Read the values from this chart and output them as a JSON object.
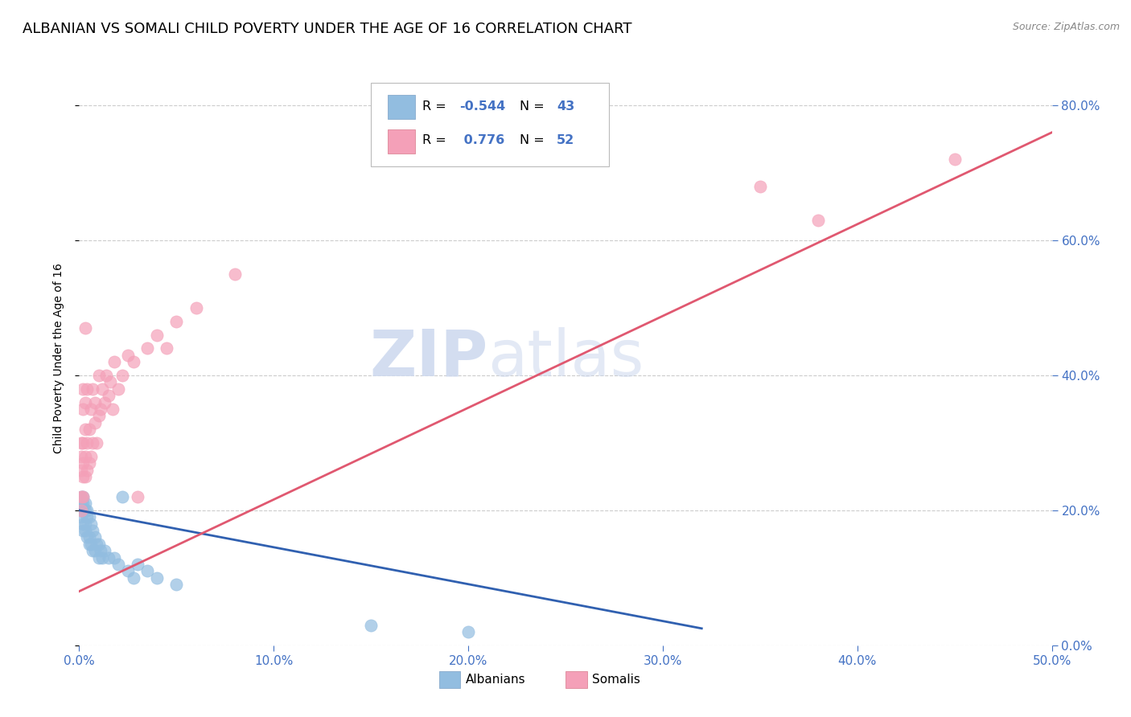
{
  "title": "ALBANIAN VS SOMALI CHILD POVERTY UNDER THE AGE OF 16 CORRELATION CHART",
  "source": "Source: ZipAtlas.com",
  "ylabel": "Child Poverty Under the Age of 16",
  "xlim": [
    0.0,
    0.5
  ],
  "ylim": [
    0.0,
    0.85
  ],
  "watermark_zip": "ZIP",
  "watermark_atlas": "atlas",
  "albanian_color": "#92bde0",
  "somali_color": "#f4a0b8",
  "albanian_line_color": "#3060b0",
  "somali_line_color": "#e05870",
  "albanian_R": -0.544,
  "albanian_N": 43,
  "somali_R": 0.776,
  "somali_N": 52,
  "albanian_points": [
    [
      0.001,
      0.22
    ],
    [
      0.001,
      0.2
    ],
    [
      0.001,
      0.19
    ],
    [
      0.001,
      0.21
    ],
    [
      0.002,
      0.22
    ],
    [
      0.002,
      0.21
    ],
    [
      0.002,
      0.2
    ],
    [
      0.002,
      0.18
    ],
    [
      0.002,
      0.17
    ],
    [
      0.003,
      0.21
    ],
    [
      0.003,
      0.2
    ],
    [
      0.003,
      0.18
    ],
    [
      0.003,
      0.17
    ],
    [
      0.004,
      0.2
    ],
    [
      0.004,
      0.19
    ],
    [
      0.004,
      0.16
    ],
    [
      0.005,
      0.19
    ],
    [
      0.005,
      0.16
    ],
    [
      0.005,
      0.15
    ],
    [
      0.006,
      0.18
    ],
    [
      0.006,
      0.15
    ],
    [
      0.007,
      0.17
    ],
    [
      0.007,
      0.14
    ],
    [
      0.008,
      0.16
    ],
    [
      0.008,
      0.14
    ],
    [
      0.009,
      0.15
    ],
    [
      0.01,
      0.15
    ],
    [
      0.01,
      0.13
    ],
    [
      0.011,
      0.14
    ],
    [
      0.012,
      0.13
    ],
    [
      0.013,
      0.14
    ],
    [
      0.015,
      0.13
    ],
    [
      0.018,
      0.13
    ],
    [
      0.02,
      0.12
    ],
    [
      0.022,
      0.22
    ],
    [
      0.025,
      0.11
    ],
    [
      0.028,
      0.1
    ],
    [
      0.03,
      0.12
    ],
    [
      0.035,
      0.11
    ],
    [
      0.04,
      0.1
    ],
    [
      0.05,
      0.09
    ],
    [
      0.15,
      0.03
    ],
    [
      0.2,
      0.02
    ]
  ],
  "somali_points": [
    [
      0.001,
      0.22
    ],
    [
      0.001,
      0.2
    ],
    [
      0.001,
      0.26
    ],
    [
      0.001,
      0.28
    ],
    [
      0.001,
      0.3
    ],
    [
      0.002,
      0.22
    ],
    [
      0.002,
      0.25
    ],
    [
      0.002,
      0.27
    ],
    [
      0.002,
      0.3
    ],
    [
      0.002,
      0.35
    ],
    [
      0.002,
      0.38
    ],
    [
      0.003,
      0.25
    ],
    [
      0.003,
      0.28
    ],
    [
      0.003,
      0.32
    ],
    [
      0.003,
      0.36
    ],
    [
      0.003,
      0.47
    ],
    [
      0.004,
      0.26
    ],
    [
      0.004,
      0.3
    ],
    [
      0.004,
      0.38
    ],
    [
      0.005,
      0.27
    ],
    [
      0.005,
      0.32
    ],
    [
      0.006,
      0.28
    ],
    [
      0.006,
      0.35
    ],
    [
      0.007,
      0.3
    ],
    [
      0.007,
      0.38
    ],
    [
      0.008,
      0.33
    ],
    [
      0.008,
      0.36
    ],
    [
      0.009,
      0.3
    ],
    [
      0.01,
      0.34
    ],
    [
      0.01,
      0.4
    ],
    [
      0.011,
      0.35
    ],
    [
      0.012,
      0.38
    ],
    [
      0.013,
      0.36
    ],
    [
      0.014,
      0.4
    ],
    [
      0.015,
      0.37
    ],
    [
      0.016,
      0.39
    ],
    [
      0.017,
      0.35
    ],
    [
      0.018,
      0.42
    ],
    [
      0.02,
      0.38
    ],
    [
      0.022,
      0.4
    ],
    [
      0.025,
      0.43
    ],
    [
      0.028,
      0.42
    ],
    [
      0.03,
      0.22
    ],
    [
      0.035,
      0.44
    ],
    [
      0.04,
      0.46
    ],
    [
      0.045,
      0.44
    ],
    [
      0.05,
      0.48
    ],
    [
      0.06,
      0.5
    ],
    [
      0.08,
      0.55
    ],
    [
      0.35,
      0.68
    ],
    [
      0.38,
      0.63
    ],
    [
      0.45,
      0.72
    ]
  ],
  "background_color": "#ffffff",
  "grid_color": "#cccccc",
  "title_fontsize": 13,
  "tick_fontsize": 11,
  "tick_color": "#4472c4",
  "source_fontsize": 9,
  "blue_color": "#4472c4"
}
